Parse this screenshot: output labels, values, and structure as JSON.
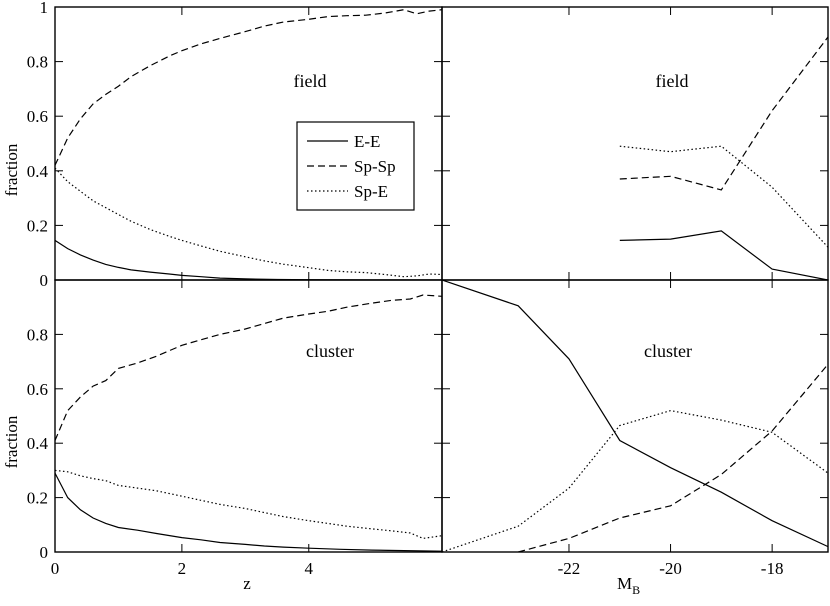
{
  "chart_data": {
    "type": "line",
    "legend": {
      "placement": "inside top-left panel, right of center",
      "entries": [
        {
          "name": "E-E",
          "style": "solid"
        },
        {
          "name": "Sp-Sp",
          "style": "dashed"
        },
        {
          "name": "Sp-E",
          "style": "dotted"
        }
      ]
    },
    "xaxis_left": {
      "label": "z",
      "range": [
        0,
        6.1
      ],
      "ticks": [
        0,
        2,
        4
      ],
      "tick_labels": [
        "0",
        "2",
        "4"
      ]
    },
    "xaxis_right": {
      "label": "M",
      "label_sub": "B",
      "range": [
        -24.5,
        -16.9
      ],
      "ticks": [
        -22,
        -20,
        -18
      ],
      "tick_labels": [
        "-22",
        "-20",
        "-18"
      ]
    },
    "yaxis_top": {
      "label": "fraction",
      "range": [
        0,
        1
      ],
      "ticks": [
        0,
        0.2,
        0.4,
        0.6,
        0.8,
        1
      ],
      "tick_labels": [
        "0",
        "0.2",
        "0.4",
        "0.6",
        "0.8",
        "1"
      ]
    },
    "yaxis_bottom": {
      "label": "fraction",
      "range": [
        0,
        1
      ],
      "ticks": [
        0,
        0.2,
        0.4,
        0.6,
        0.8
      ],
      "tick_labels": [
        "0",
        "0.2",
        "0.4",
        "0.6",
        "0.8"
      ]
    },
    "panels": [
      {
        "id": "field-z",
        "label": "field",
        "series": [
          {
            "name": "E-E",
            "style": "solid",
            "x": [
              0,
              0.2,
              0.4,
              0.6,
              0.8,
              1.0,
              1.2,
              1.5,
              1.8,
              2.0,
              2.3,
              2.6,
              3.0,
              3.5,
              4.0,
              5.0,
              6.1
            ],
            "y": [
              0.145,
              0.115,
              0.092,
              0.073,
              0.057,
              0.046,
              0.037,
              0.029,
              0.022,
              0.017,
              0.012,
              0.007,
              0.004,
              0.002,
              0.001,
              0.0,
              0.0
            ]
          },
          {
            "name": "Sp-Sp",
            "style": "dashed",
            "x": [
              0,
              0.2,
              0.4,
              0.6,
              0.8,
              1.0,
              1.2,
              1.5,
              1.8,
              2.0,
              2.3,
              2.6,
              3.0,
              3.3,
              3.6,
              4.0,
              4.3,
              4.6,
              4.9,
              5.2,
              5.5,
              5.7,
              5.9,
              6.1
            ],
            "y": [
              0.42,
              0.52,
              0.59,
              0.645,
              0.68,
              0.71,
              0.745,
              0.785,
              0.82,
              0.84,
              0.865,
              0.885,
              0.91,
              0.93,
              0.945,
              0.955,
              0.965,
              0.968,
              0.97,
              0.978,
              0.99,
              0.975,
              0.985,
              0.99
            ]
          },
          {
            "name": "Sp-E",
            "style": "dotted",
            "x": [
              0,
              0.2,
              0.4,
              0.6,
              0.8,
              1.0,
              1.2,
              1.5,
              1.8,
              2.0,
              2.3,
              2.6,
              3.0,
              3.3,
              3.6,
              4.0,
              4.3,
              4.6,
              4.9,
              5.2,
              5.5,
              5.7,
              5.9,
              6.1
            ],
            "y": [
              0.41,
              0.36,
              0.325,
              0.29,
              0.265,
              0.24,
              0.215,
              0.185,
              0.16,
              0.145,
              0.125,
              0.105,
              0.085,
              0.07,
              0.058,
              0.045,
              0.035,
              0.03,
              0.027,
              0.02,
              0.012,
              0.015,
              0.022,
              0.02
            ]
          }
        ]
      },
      {
        "id": "field-mb",
        "label": "field",
        "series": [
          {
            "name": "E-E",
            "style": "solid",
            "x": [
              -21,
              -20,
              -19,
              -18,
              -16.9
            ],
            "y": [
              0.145,
              0.15,
              0.18,
              0.04,
              0.0
            ]
          },
          {
            "name": "Sp-Sp",
            "style": "dashed",
            "x": [
              -21,
              -20,
              -19,
              -18,
              -16.9
            ],
            "y": [
              0.37,
              0.38,
              0.33,
              0.62,
              0.89
            ]
          },
          {
            "name": "Sp-E",
            "style": "dotted",
            "x": [
              -21,
              -20,
              -19,
              -18,
              -16.9
            ],
            "y": [
              0.49,
              0.47,
              0.49,
              0.34,
              0.12
            ]
          }
        ]
      },
      {
        "id": "cluster-z",
        "label": "cluster",
        "series": [
          {
            "name": "E-E",
            "style": "solid",
            "x": [
              0,
              0.2,
              0.4,
              0.6,
              0.8,
              1.0,
              1.3,
              1.6,
              2.0,
              2.3,
              2.6,
              3.0,
              3.3,
              3.6,
              4.0,
              4.5,
              5.0,
              5.5,
              6.1
            ],
            "y": [
              0.29,
              0.2,
              0.155,
              0.125,
              0.105,
              0.09,
              0.08,
              0.068,
              0.053,
              0.045,
              0.035,
              0.028,
              0.022,
              0.018,
              0.014,
              0.01,
              0.007,
              0.005,
              0.003
            ]
          },
          {
            "name": "Sp-Sp",
            "style": "dashed",
            "x": [
              0,
              0.2,
              0.4,
              0.6,
              0.8,
              1.0,
              1.3,
              1.6,
              2.0,
              2.3,
              2.6,
              3.0,
              3.3,
              3.6,
              4.0,
              4.3,
              4.6,
              5.0,
              5.3,
              5.6,
              5.8,
              6.1
            ],
            "y": [
              0.41,
              0.52,
              0.57,
              0.61,
              0.63,
              0.675,
              0.695,
              0.72,
              0.76,
              0.78,
              0.8,
              0.82,
              0.84,
              0.86,
              0.875,
              0.885,
              0.9,
              0.915,
              0.925,
              0.93,
              0.945,
              0.94
            ]
          },
          {
            "name": "Sp-E",
            "style": "dotted",
            "x": [
              0,
              0.2,
              0.4,
              0.6,
              0.8,
              1.0,
              1.3,
              1.6,
              2.0,
              2.3,
              2.6,
              3.0,
              3.3,
              3.6,
              4.0,
              4.3,
              4.6,
              5.0,
              5.3,
              5.6,
              5.8,
              6.1
            ],
            "y": [
              0.3,
              0.295,
              0.28,
              0.27,
              0.262,
              0.245,
              0.235,
              0.225,
              0.205,
              0.19,
              0.175,
              0.16,
              0.145,
              0.13,
              0.115,
              0.105,
              0.095,
              0.085,
              0.078,
              0.07,
              0.05,
              0.06
            ]
          }
        ]
      },
      {
        "id": "cluster-mb",
        "label": "cluster",
        "series": [
          {
            "name": "E-E",
            "style": "solid",
            "x": [
              -24.5,
              -23,
              -22,
              -21,
              -20,
              -19,
              -18,
              -16.9
            ],
            "y": [
              1.0,
              0.905,
              0.71,
              0.41,
              0.31,
              0.22,
              0.115,
              0.02
            ]
          },
          {
            "name": "Sp-Sp",
            "style": "dashed",
            "x": [
              -23,
              -22,
              -21,
              -20,
              -19,
              -18,
              -16.9
            ],
            "y": [
              0.0,
              0.05,
              0.125,
              0.17,
              0.285,
              0.445,
              0.69
            ]
          },
          {
            "name": "Sp-E",
            "style": "dotted",
            "x": [
              -24.5,
              -23,
              -22,
              -21,
              -20,
              -19,
              -18,
              -16.9
            ],
            "y": [
              0.0,
              0.095,
              0.235,
              0.465,
              0.52,
              0.485,
              0.44,
              0.29
            ]
          }
        ]
      }
    ]
  }
}
